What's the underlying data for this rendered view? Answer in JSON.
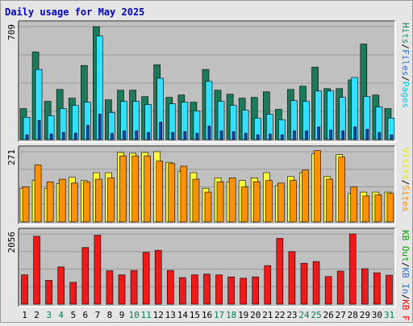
{
  "chart_data": {
    "type": "bar",
    "title": "Daily usage for May 2025",
    "categories": [
      "1",
      "2",
      "3",
      "4",
      "5",
      "6",
      "7",
      "8",
      "9",
      "10",
      "11",
      "12",
      "13",
      "14",
      "15",
      "16",
      "17",
      "18",
      "19",
      "20",
      "21",
      "22",
      "23",
      "24",
      "25",
      "26",
      "27",
      "28",
      "29",
      "30",
      "31"
    ],
    "weekend_days": [
      "3",
      "4",
      "10",
      "11",
      "17",
      "18",
      "24",
      "25",
      "31"
    ],
    "panels": [
      {
        "name": "hits",
        "ymax_label": "709",
        "ymax": 709,
        "legend": [
          {
            "text": "Pages",
            "color": "#00c8e8"
          },
          {
            "text": "/",
            "color": "#000000"
          },
          {
            "text": "Files",
            "color": "#2b6fd6"
          },
          {
            "text": "/",
            "color": "#000000"
          },
          {
            "text": "Hits",
            "color": "#1f8a6a"
          }
        ],
        "series": [
          {
            "name": "Hits",
            "color": "#1b7a5a",
            "values": [
              195,
              550,
              240,
              315,
              260,
              465,
              709,
              250,
              310,
              310,
              270,
              470,
              265,
              280,
              235,
              440,
              310,
              285,
              260,
              265,
              300,
              190,
              315,
              335,
              455,
              320,
              320,
              375,
              600,
              280,
              195
            ]
          },
          {
            "name": "Files",
            "color": "#33e0ff",
            "values": [
              140,
              440,
              150,
              195,
              215,
              235,
              650,
              170,
              240,
              240,
              220,
              385,
              225,
              235,
              180,
              365,
              240,
              215,
              185,
              135,
              160,
              125,
              245,
              240,
              305,
              305,
              265,
              390,
              270,
              205,
              135
            ]
          },
          {
            "name": "Pages",
            "color": "#1a3fb8",
            "values": [
              30,
              120,
              35,
              45,
              40,
              90,
              160,
              40,
              55,
              55,
              45,
              110,
              45,
              50,
              40,
              85,
              55,
              50,
              40,
              30,
              35,
              30,
              55,
              55,
              80,
              60,
              55,
              80,
              65,
              45,
              30
            ]
          }
        ]
      },
      {
        "name": "visits",
        "ymax_label": "271",
        "ymax": 271,
        "legend": [
          {
            "text": "Sites",
            "color": "#ff8c00"
          },
          {
            "text": "/",
            "color": "#000000"
          },
          {
            "text": "Visits",
            "color": "#e8e800"
          }
        ],
        "series": [
          {
            "name": "Visits",
            "color": "#ffff33",
            "values": [
              130,
              160,
              130,
              148,
              172,
              160,
              190,
              190,
              268,
              265,
              268,
              271,
              230,
              195,
              190,
              130,
              170,
              155,
              160,
              170,
              190,
              140,
              175,
              190,
              263,
              175,
              260,
              110,
              115,
              115,
              115
            ]
          },
          {
            "name": "Sites",
            "color": "#ff9000",
            "values": [
              135,
              220,
              155,
              165,
              150,
              155,
              165,
              170,
              255,
              255,
              255,
              235,
              225,
              215,
              165,
              115,
              155,
              170,
              135,
              155,
              160,
              150,
              160,
              200,
              275,
              165,
              250,
              135,
              100,
              105,
              110
            ]
          }
        ]
      },
      {
        "name": "kbytes",
        "ymax_label": "2056",
        "ymax": 2056,
        "legend": [
          {
            "text": "KB F",
            "color": "#ff0000"
          },
          {
            "text": "/",
            "color": "#000000"
          },
          {
            "text": "KB In",
            "color": "#2b6fd6"
          },
          {
            "text": "/",
            "color": "#000000"
          },
          {
            "text": "KB Out",
            "color": "#00a000"
          }
        ],
        "series": [
          {
            "name": "KB F",
            "color": "#ee1a1a",
            "values": [
              860,
              1990,
              700,
              1090,
              640,
              1660,
              2020,
              980,
              860,
              990,
              1520,
              1580,
              990,
              780,
              860,
              880,
              860,
              800,
              760,
              800,
              1130,
              1930,
              1540,
              1200,
              1250,
              810,
              970,
              2056,
              1040,
              920,
              850
            ]
          }
        ]
      }
    ],
    "grid": true
  },
  "colors": {
    "background": "#e6e6e6",
    "panel": "#c0c0c0",
    "title": "#0000c0",
    "weekday_label": "#000000",
    "weekend_label": "#00805a"
  }
}
